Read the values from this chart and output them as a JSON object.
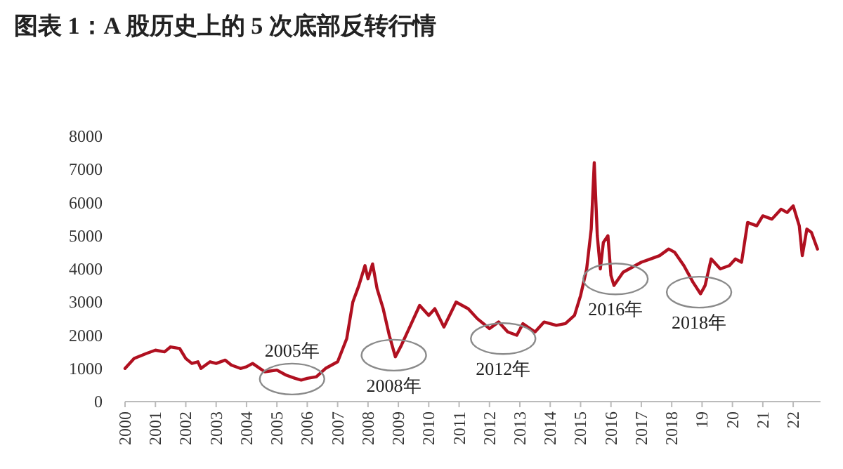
{
  "chart_data": {
    "type": "line",
    "title": "图表 1：A 股历史上的 5 次底部反转行情",
    "x": [
      2000.0,
      2000.3,
      2000.7,
      2001.0,
      2001.3,
      2001.5,
      2001.8,
      2002.0,
      2002.2,
      2002.4,
      2002.5,
      2002.8,
      2003.0,
      2003.3,
      2003.5,
      2003.8,
      2004.0,
      2004.2,
      2004.6,
      2005.0,
      2005.3,
      2005.6,
      2005.8,
      2006.0,
      2006.3,
      2006.6,
      2006.8,
      2007.0,
      2007.3,
      2007.5,
      2007.7,
      2007.9,
      2008.0,
      2008.15,
      2008.3,
      2008.5,
      2008.7,
      2008.9,
      2009.1,
      2009.4,
      2009.7,
      2010.0,
      2010.2,
      2010.5,
      2010.9,
      2011.3,
      2011.6,
      2012.0,
      2012.3,
      2012.6,
      2012.9,
      2013.1,
      2013.5,
      2013.8,
      2014.2,
      2014.5,
      2014.8,
      2015.0,
      2015.2,
      2015.35,
      2015.45,
      2015.55,
      2015.65,
      2015.75,
      2015.9,
      2016.0,
      2016.1,
      2016.4,
      2016.8,
      2017.0,
      2017.3,
      2017.6,
      2017.9,
      2018.1,
      2018.4,
      2018.7,
      2018.95,
      2019.1,
      2019.3,
      2019.6,
      2019.9,
      2020.1,
      2020.3,
      2020.5,
      2020.8,
      2021.0,
      2021.3,
      2021.6,
      2021.8,
      2022.0,
      2022.2,
      2022.3,
      2022.45,
      2022.6,
      2022.8
    ],
    "series": [
      {
        "color": "#b01020",
        "values": [
          1000,
          1300,
          1450,
          1550,
          1500,
          1650,
          1600,
          1300,
          1150,
          1200,
          1000,
          1200,
          1150,
          1250,
          1100,
          1000,
          1050,
          1150,
          900,
          950,
          800,
          700,
          650,
          700,
          750,
          1000,
          1100,
          1200,
          1900,
          3000,
          3500,
          4100,
          3700,
          4150,
          3400,
          2800,
          2000,
          1350,
          1700,
          2300,
          2900,
          2600,
          2800,
          2250,
          3000,
          2800,
          2500,
          2200,
          2400,
          2100,
          2000,
          2350,
          2100,
          2400,
          2300,
          2350,
          2600,
          3200,
          4000,
          5200,
          7200,
          5000,
          4000,
          4800,
          5000,
          3800,
          3500,
          3900,
          4100,
          4200,
          4300,
          4400,
          4600,
          4500,
          4100,
          3600,
          3250,
          3500,
          4300,
          4000,
          4100,
          4300,
          4200,
          5400,
          5300,
          5600,
          5500,
          5800,
          5700,
          5900,
          5300,
          4400,
          5200,
          5100,
          4600
        ]
      }
    ],
    "xlim": [
      2000,
      2022.9
    ],
    "xticks": [
      2000,
      2001,
      2002,
      2003,
      2004,
      2005,
      2006,
      2007,
      2008,
      2009,
      2010,
      2011,
      2012,
      2013,
      2014,
      2015,
      2016,
      2017,
      2018,
      {
        "value": 2019,
        "label": "19"
      },
      {
        "value": 2020,
        "label": "20"
      },
      {
        "value": 2021,
        "label": "21"
      },
      {
        "value": 2022,
        "label": "22"
      }
    ],
    "ylim": [
      0,
      8000
    ],
    "yticks": [
      0,
      1000,
      2000,
      3000,
      4000,
      5000,
      6000,
      7000,
      8000
    ],
    "grid": false,
    "annotations": [
      {
        "text": "2005年",
        "x": 2005.5,
        "y": 680
      },
      {
        "text": "2008年",
        "x": 2008.85,
        "y": 1400
      },
      {
        "text": "2012年",
        "x": 2012.45,
        "y": 1900
      },
      {
        "text": "2016年",
        "x": 2016.15,
        "y": 3700
      },
      {
        "text": "2018年",
        "x": 2018.9,
        "y": 3300
      }
    ]
  }
}
